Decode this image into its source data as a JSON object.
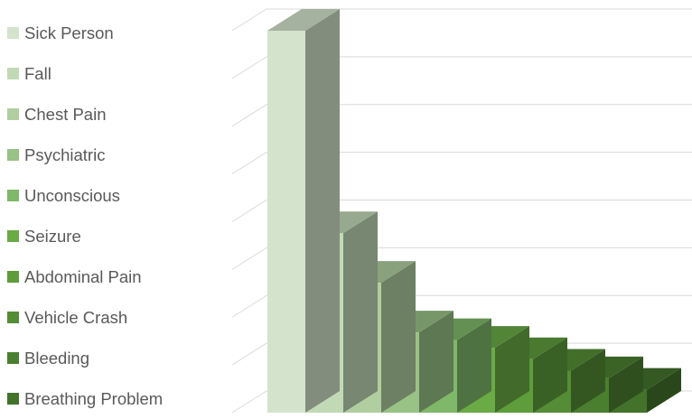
{
  "chart_data": {
    "type": "bar",
    "title": "",
    "xlabel": "",
    "ylabel": "",
    "ylim": [
      0,
      100
    ],
    "grid": true,
    "legend_position": "left",
    "categories": [
      "Sick Person",
      "Fall",
      "Chest Pain",
      "Psychiatric",
      "Unconscious",
      "Seizure",
      "Abdominal Pain",
      "Vehicle Crash",
      "Bleeding",
      "Breathing Problem"
    ],
    "values": [
      100,
      47,
      34,
      21,
      19,
      17,
      14,
      11,
      9,
      6
    ],
    "colors": [
      "#d4e4cc",
      "#c2d9b6",
      "#b0cea0",
      "#98c286",
      "#80b86a",
      "#6aab46",
      "#5e9c3c",
      "#548d36",
      "#4b7f30",
      "#43722b"
    ]
  }
}
